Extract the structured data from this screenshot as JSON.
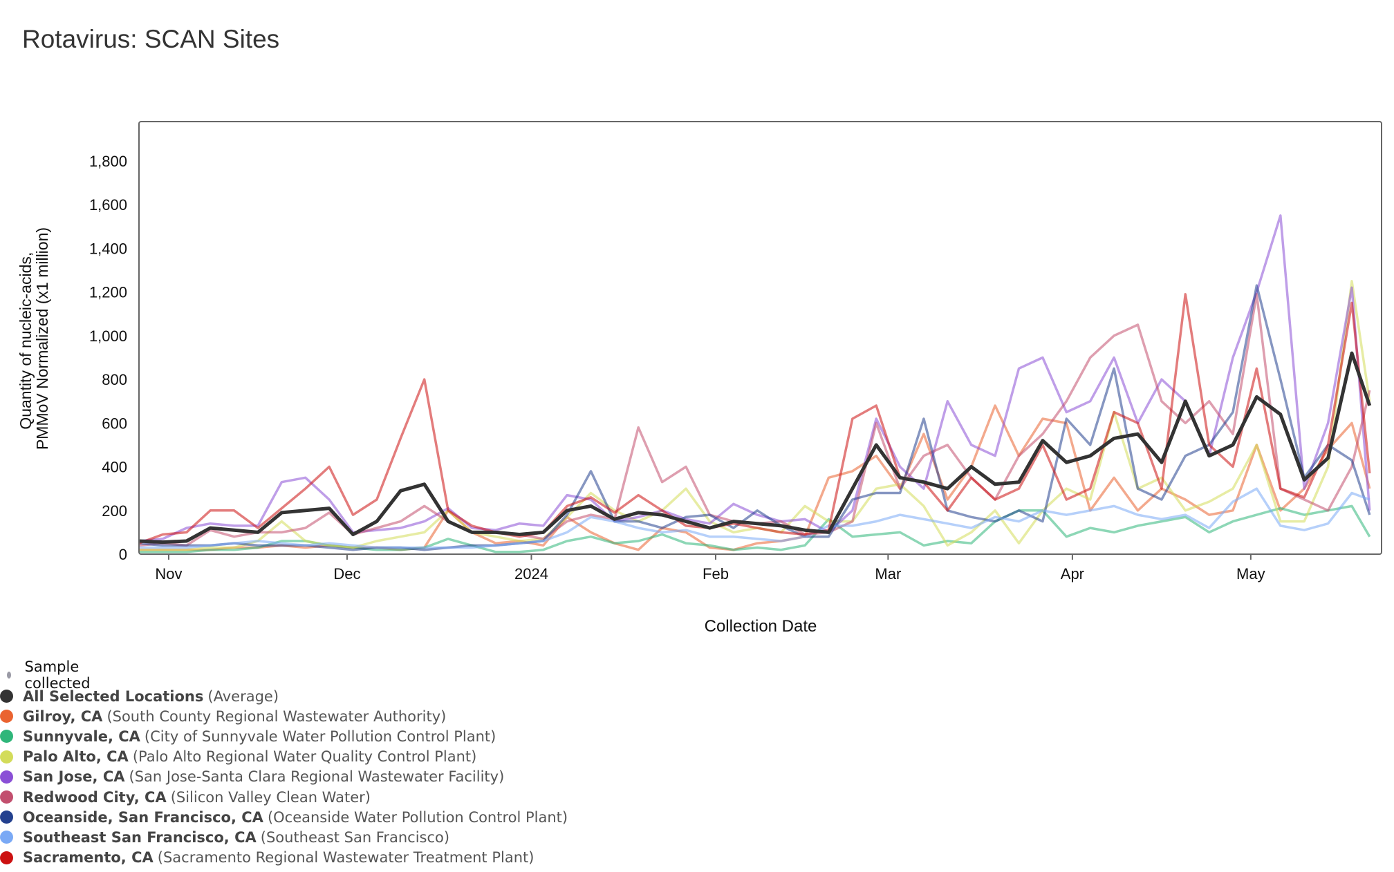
{
  "title": "Rotavirus: SCAN Sites",
  "legend": {
    "sample_collected": "Sample collected",
    "sample_color": "#9a9aa5",
    "entries": [
      {
        "name": "All Selected Locations",
        "detail": "(Average)",
        "color": "#333333"
      },
      {
        "name": "Gilroy, CA",
        "detail": "(South County Regional Wastewater Authority)",
        "color": "#ea6330"
      },
      {
        "name": "Sunnyvale, CA",
        "detail": "(City of Sunnyvale Water Pollution Control Plant)",
        "color": "#2fb67a"
      },
      {
        "name": "Palo Alto, CA",
        "detail": "(Palo Alto Regional Water Quality Control Plant)",
        "color": "#d3dc5a"
      },
      {
        "name": "San Jose, CA",
        "detail": "(San Jose-Santa Clara Regional Wastewater Facility)",
        "color": "#8a4fd6"
      },
      {
        "name": "Redwood City, CA",
        "detail": "(Silicon Valley Clean Water)",
        "color": "#c24f6e"
      },
      {
        "name": "Oceanside, San Francisco, CA",
        "detail": "(Oceanside Water Pollution Control Plant)",
        "color": "#23408e"
      },
      {
        "name": "Southeast San Francisco, CA",
        "detail": "(Southeast San Francisco)",
        "color": "#7aa9f5"
      },
      {
        "name": "Sacramento, CA",
        "detail": "(Sacramento Regional Wastewater Treatment Plant)",
        "color": "#cc1111"
      }
    ]
  },
  "chart_data": {
    "type": "line",
    "title": "Rotavirus: SCAN Sites",
    "xlabel": "Collection Date",
    "ylabel": [
      "Quantity of nucleic-acids,",
      "PMMoV Normalized (x1 million)"
    ],
    "xlim": [
      "2023-10-27",
      "2024-05-23"
    ],
    "ylim": [
      0,
      1980
    ],
    "yticks": [
      0,
      200,
      400,
      600,
      800,
      1000,
      1200,
      1400,
      1600,
      1800
    ],
    "ytick_labels": [
      "0",
      "200",
      "400",
      "600",
      "800",
      "1,000",
      "1,200",
      "1,400",
      "1,600",
      "1,800"
    ],
    "xticks": [
      {
        "date": "2023-11-01",
        "label": "Nov"
      },
      {
        "date": "2023-12-01",
        "label": "Dec"
      },
      {
        "date": "2024-01-01",
        "label": "2024"
      },
      {
        "date": "2024-02-01",
        "label": "Feb"
      },
      {
        "date": "2024-03-01",
        "label": "Mar"
      },
      {
        "date": "2024-04-01",
        "label": "Apr"
      },
      {
        "date": "2024-05-01",
        "label": "May"
      }
    ],
    "grid": false,
    "legend_placement": "bottom-left",
    "x": [
      "2023-10-27",
      "2023-10-31",
      "2023-11-04",
      "2023-11-08",
      "2023-11-12",
      "2023-11-16",
      "2023-11-20",
      "2023-11-24",
      "2023-11-28",
      "2023-12-02",
      "2023-12-06",
      "2023-12-10",
      "2023-12-14",
      "2023-12-18",
      "2023-12-22",
      "2023-12-26",
      "2023-12-30",
      "2024-01-03",
      "2024-01-07",
      "2024-01-11",
      "2024-01-15",
      "2024-01-19",
      "2024-01-23",
      "2024-01-27",
      "2024-01-31",
      "2024-02-04",
      "2024-02-08",
      "2024-02-12",
      "2024-02-16",
      "2024-02-20",
      "2024-02-24",
      "2024-02-28",
      "2024-03-03",
      "2024-03-07",
      "2024-03-11",
      "2024-03-15",
      "2024-03-19",
      "2024-03-23",
      "2024-03-27",
      "2024-03-31",
      "2024-04-04",
      "2024-04-08",
      "2024-04-12",
      "2024-04-16",
      "2024-04-20",
      "2024-04-24",
      "2024-04-28",
      "2024-05-02",
      "2024-05-06",
      "2024-05-10",
      "2024-05-14",
      "2024-05-18",
      "2024-05-21"
    ],
    "series": [
      {
        "name": "Gilroy, CA",
        "color": "#ea6330",
        "values": [
          20,
          20,
          20,
          20,
          30,
          30,
          40,
          30,
          40,
          30,
          30,
          20,
          30,
          200,
          100,
          50,
          60,
          40,
          170,
          100,
          50,
          20,
          120,
          100,
          30,
          20,
          50,
          60,
          80,
          350,
          380,
          450,
          300,
          550,
          250,
          400,
          680,
          450,
          620,
          600,
          200,
          350,
          200,
          300,
          250,
          180,
          200,
          500,
          200,
          300,
          480,
          600,
          300
        ]
      },
      {
        "name": "Sunnyvale, CA",
        "color": "#2fb67a",
        "values": [
          10,
          10,
          10,
          20,
          20,
          30,
          60,
          60,
          40,
          30,
          20,
          20,
          30,
          70,
          40,
          10,
          10,
          20,
          60,
          80,
          50,
          60,
          90,
          50,
          40,
          20,
          30,
          20,
          40,
          160,
          80,
          90,
          100,
          40,
          60,
          50,
          150,
          200,
          200,
          80,
          120,
          100,
          130,
          150,
          170,
          100,
          150,
          180,
          210,
          180,
          200,
          220,
          80
        ]
      },
      {
        "name": "Palo Alto, CA",
        "color": "#d3dc5a",
        "values": [
          20,
          20,
          20,
          30,
          30,
          60,
          150,
          60,
          40,
          30,
          60,
          80,
          100,
          200,
          100,
          80,
          60,
          70,
          170,
          280,
          200,
          150,
          200,
          300,
          150,
          100,
          120,
          100,
          220,
          150,
          150,
          300,
          320,
          220,
          40,
          100,
          200,
          50,
          200,
          300,
          250,
          650,
          300,
          350,
          200,
          240,
          300,
          500,
          150,
          150,
          400,
          1250,
          700
        ]
      },
      {
        "name": "San Jose, CA",
        "color": "#8a4fd6",
        "values": [
          60,
          70,
          120,
          140,
          130,
          130,
          330,
          350,
          250,
          100,
          110,
          120,
          150,
          210,
          120,
          110,
          140,
          130,
          270,
          250,
          150,
          170,
          200,
          160,
          140,
          230,
          180,
          150,
          160,
          100,
          200,
          620,
          400,
          300,
          700,
          500,
          450,
          850,
          900,
          650,
          700,
          900,
          600,
          800,
          700,
          450,
          900,
          1200,
          1550,
          300,
          600,
          1220,
          200
        ]
      },
      {
        "name": "Redwood City, CA",
        "color": "#c24f6e",
        "values": [
          40,
          50,
          40,
          110,
          80,
          100,
          100,
          120,
          190,
          90,
          120,
          150,
          220,
          150,
          100,
          100,
          90,
          70,
          150,
          180,
          160,
          580,
          330,
          400,
          180,
          150,
          140,
          150,
          90,
          100,
          150,
          600,
          300,
          450,
          500,
          350,
          250,
          450,
          550,
          700,
          900,
          1000,
          1050,
          700,
          600,
          700,
          550,
          1190,
          300,
          250,
          200,
          400,
          750
        ]
      },
      {
        "name": "Oceanside, San Francisco, CA",
        "color": "#23408e",
        "values": [
          50,
          40,
          40,
          40,
          50,
          40,
          40,
          40,
          30,
          20,
          30,
          30,
          20,
          30,
          40,
          40,
          50,
          60,
          180,
          380,
          150,
          150,
          120,
          170,
          180,
          120,
          200,
          130,
          80,
          80,
          250,
          280,
          280,
          620,
          200,
          170,
          150,
          200,
          150,
          620,
          500,
          850,
          300,
          250,
          450,
          500,
          650,
          1230,
          800,
          350,
          500,
          430,
          180
        ]
      },
      {
        "name": "Southeast San Francisco, CA",
        "color": "#7aa9f5",
        "values": [
          30,
          30,
          30,
          40,
          50,
          60,
          50,
          40,
          50,
          40,
          30,
          30,
          30,
          30,
          30,
          40,
          50,
          60,
          100,
          170,
          150,
          120,
          100,
          110,
          80,
          80,
          70,
          60,
          80,
          130,
          130,
          150,
          180,
          160,
          140,
          120,
          170,
          150,
          200,
          180,
          200,
          220,
          180,
          160,
          180,
          120,
          240,
          300,
          130,
          110,
          140,
          280,
          250
        ]
      },
      {
        "name": "Sacramento, CA",
        "color": "#cc1111",
        "values": [
          50,
          90,
          100,
          200,
          200,
          120,
          210,
          300,
          400,
          180,
          250,
          530,
          800,
          200,
          130,
          100,
          80,
          100,
          220,
          260,
          190,
          270,
          200,
          130,
          120,
          140,
          120,
          100,
          90,
          110,
          620,
          680,
          350,
          330,
          200,
          350,
          250,
          300,
          500,
          250,
          300,
          650,
          600,
          300,
          1190,
          500,
          400,
          850,
          300,
          260,
          500,
          1150,
          370
        ]
      },
      {
        "name": "All Selected Locations",
        "color": "#333333",
        "values": [
          60,
          55,
          60,
          120,
          110,
          100,
          190,
          200,
          210,
          90,
          150,
          290,
          320,
          150,
          100,
          100,
          90,
          100,
          200,
          220,
          160,
          190,
          180,
          150,
          120,
          150,
          140,
          130,
          110,
          100,
          300,
          500,
          350,
          330,
          300,
          400,
          320,
          330,
          520,
          420,
          450,
          530,
          550,
          420,
          700,
          450,
          500,
          720,
          640,
          340,
          440,
          920,
          680
        ]
      }
    ]
  }
}
